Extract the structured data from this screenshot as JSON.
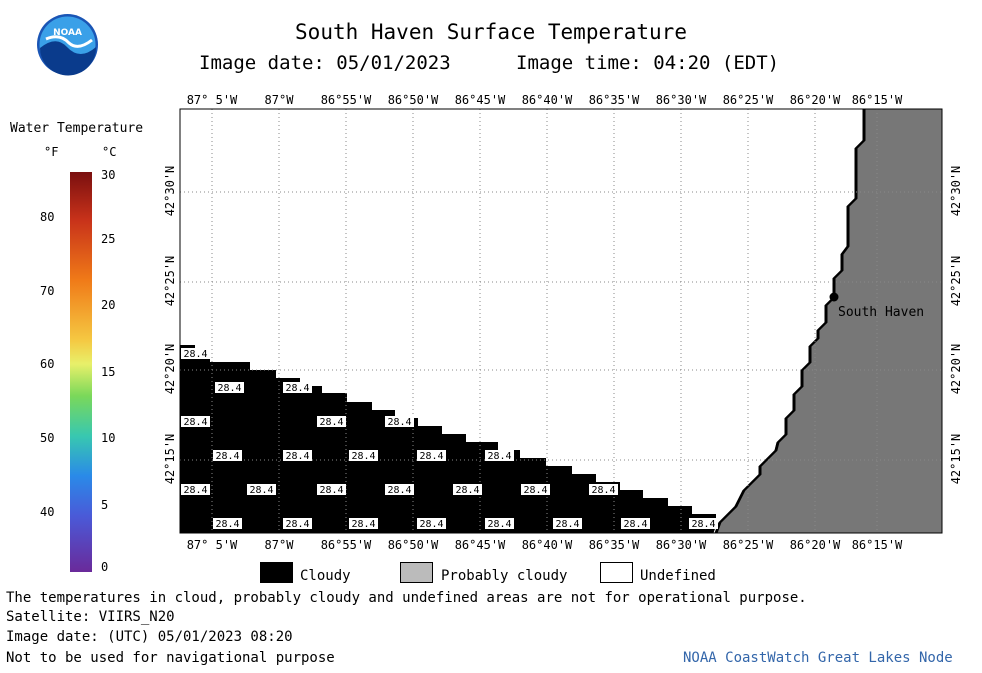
{
  "title": "South Haven Surface Temperature",
  "image_date_label": "Image date: 05/01/2023",
  "image_time_label": "Image time: 04:20 (EDT)",
  "logo_text": "NOAA",
  "colorbar": {
    "title": "Water Temperature",
    "unit_f": "°F",
    "unit_c": "°C",
    "f_ticks": [
      "80",
      "70",
      "60",
      "50",
      "40"
    ],
    "c_ticks": [
      "30",
      "25",
      "20",
      "15",
      "10",
      "5",
      "0"
    ]
  },
  "lon_ticks": [
    "87° 5'W",
    "87°W",
    "86°55'W",
    "86°50'W",
    "86°45'W",
    "86°40'W",
    "86°35'W",
    "86°30'W",
    "86°25'W",
    "86°20'W",
    "86°15'W"
  ],
  "lat_ticks": [
    "42°30'N",
    "42°25'N",
    "42°20'N",
    "42°15'N"
  ],
  "place": {
    "name": "South Haven"
  },
  "cloud_temp_label": "28.4",
  "legend": {
    "cloudy": "Cloudy",
    "probably_cloudy": "Probably cloudy",
    "undefined": "Undefined"
  },
  "footer": {
    "disclaimer": "The temperatures in cloud, probably cloudy and undefined areas are not for operational purpose.",
    "satellite": "Satellite: VIIRS_N20",
    "utc_date": "Image date: (UTC) 05/01/2023  08:20",
    "nav_warning": "Not to be used for navigational purpose",
    "credit": "NOAA CoastWatch Great Lakes Node"
  },
  "colors": {
    "land": "#777777",
    "cloud": "#000000",
    "probably_cloudy": "#bbbbbb",
    "credit": "#3366aa"
  }
}
